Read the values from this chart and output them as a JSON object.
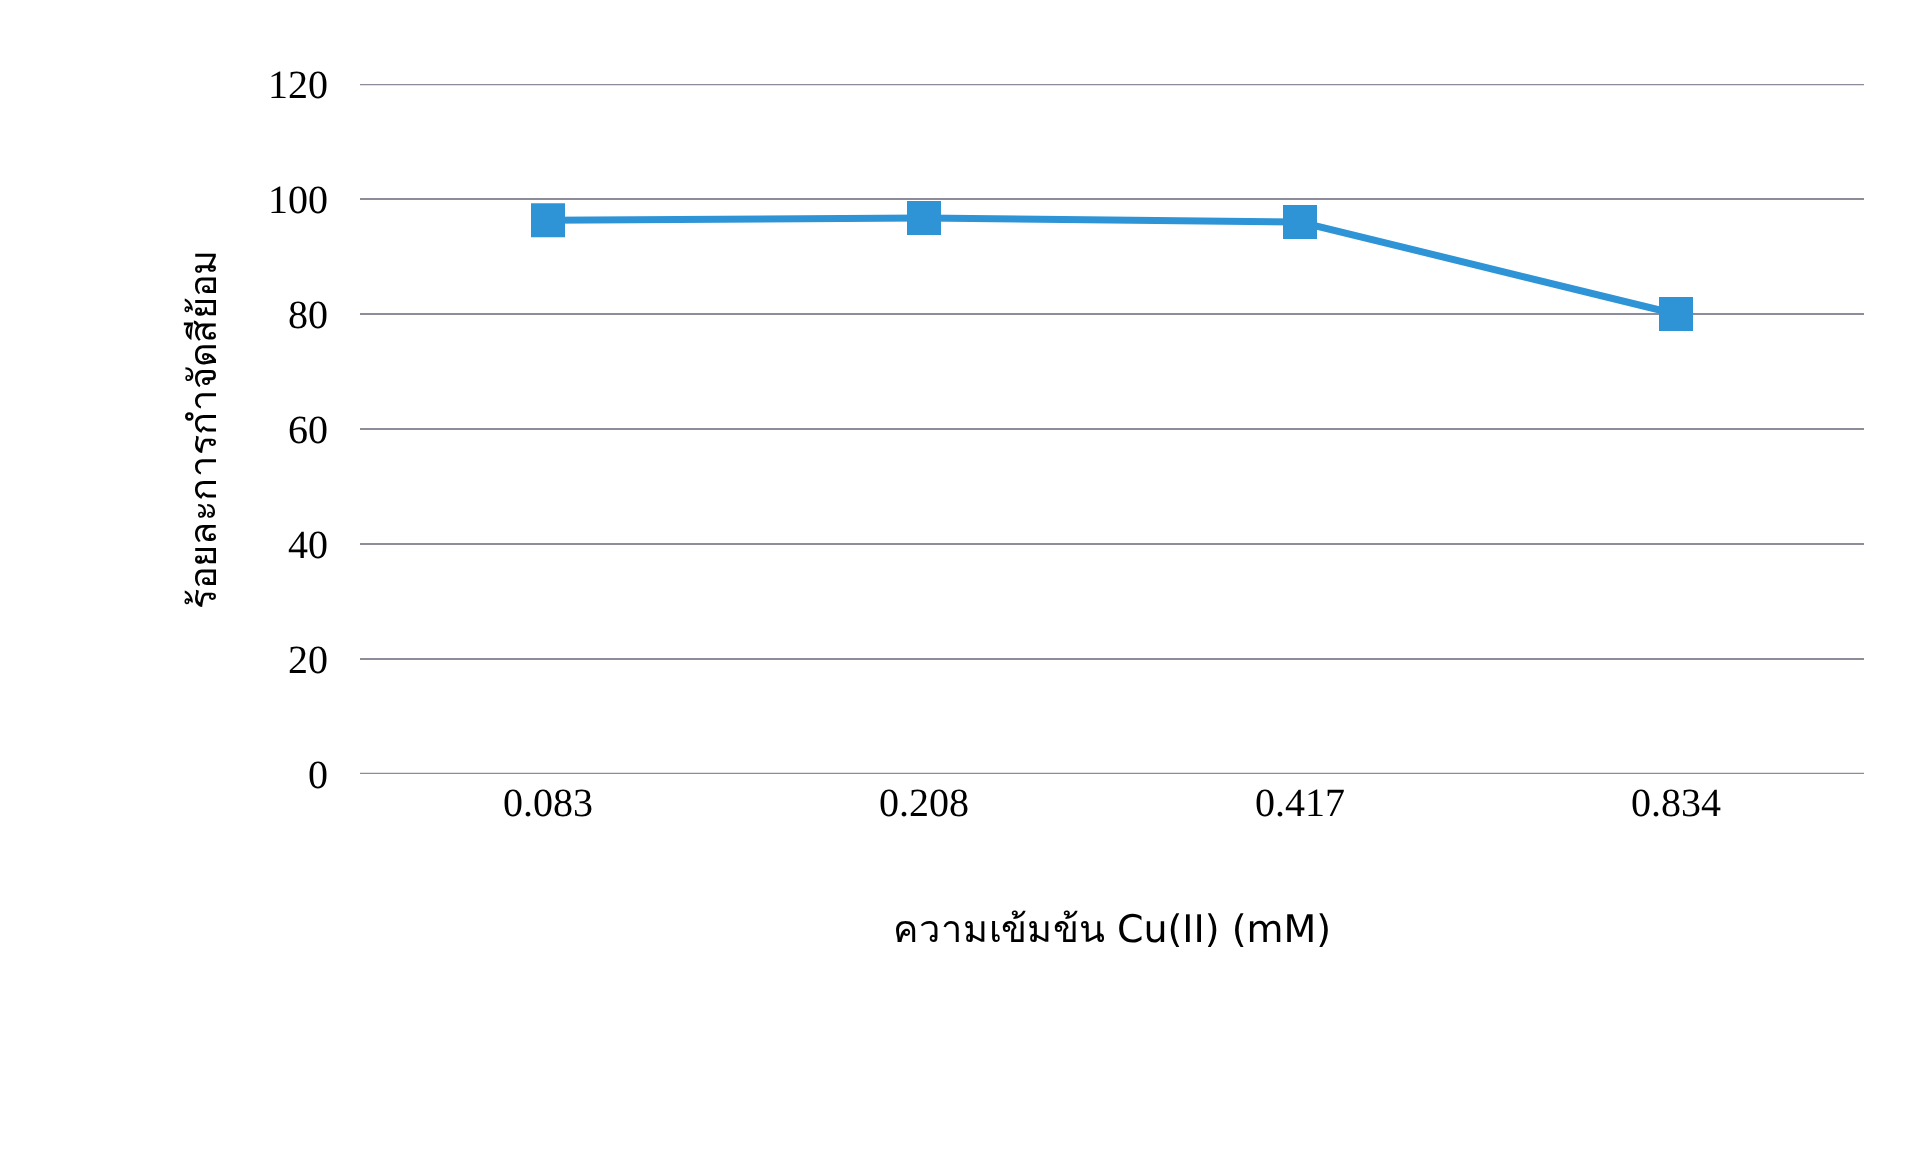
{
  "chart_data": {
    "type": "line",
    "xlabel": "ความเข้มข้น Cu(II) (mM)",
    "ylabel": "ร้อยละการกำจัดสีย้อม",
    "categories": [
      "0.083",
      "0.208",
      "0.417",
      "0.834"
    ],
    "series": [
      {
        "color": "#2e94d6",
        "values": [
          96.3,
          96.7,
          96.0,
          80.0
        ]
      }
    ],
    "ylim": [
      0,
      120
    ],
    "yticks": [
      0,
      20,
      40,
      60,
      80,
      100,
      120
    ],
    "grid": "y",
    "marker": "square",
    "line_style": "solid"
  }
}
